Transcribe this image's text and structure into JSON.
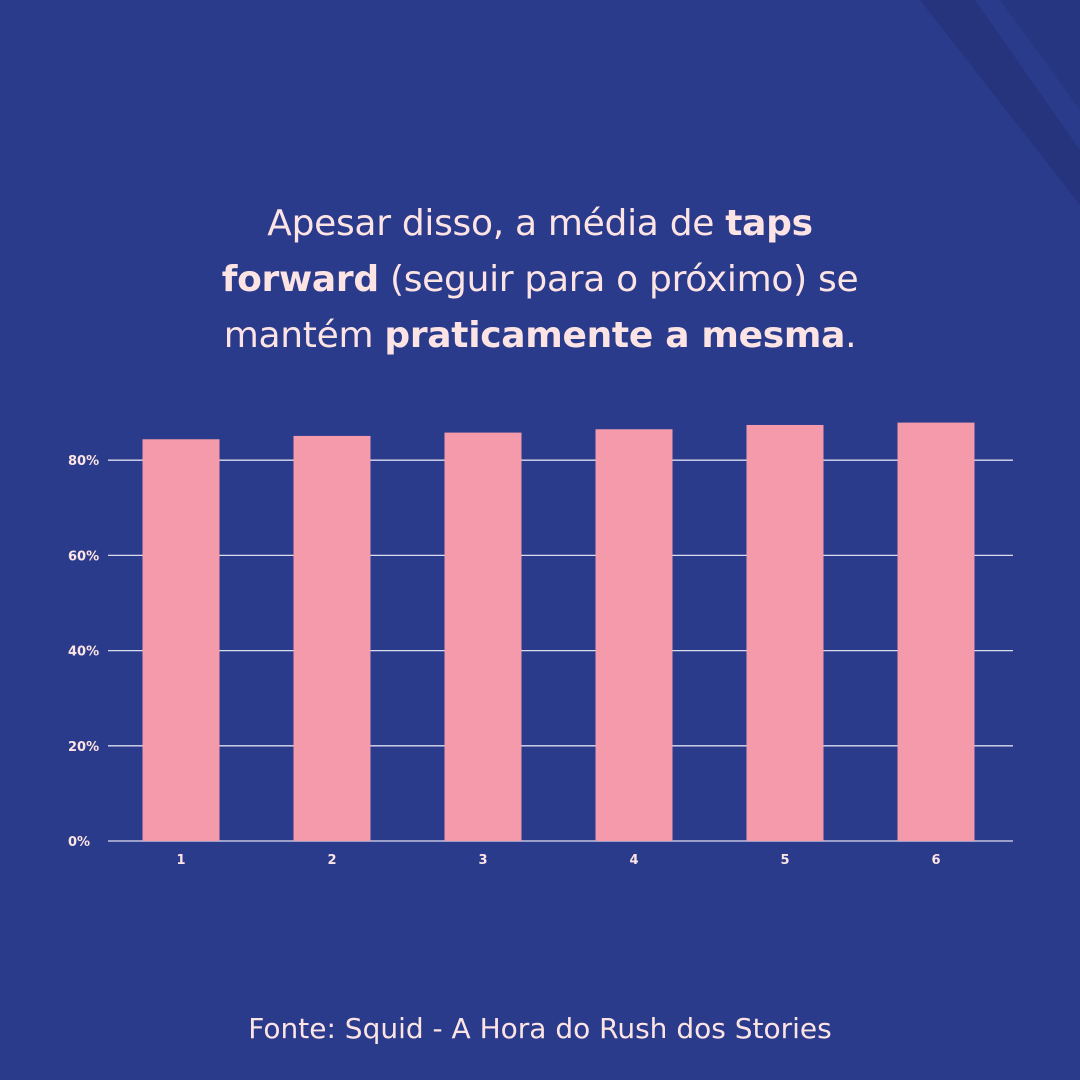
{
  "headline": {
    "line1_regular": "Apesar disso, a média de ",
    "line1_bold": "taps",
    "line2_bold": "forward",
    "line2_regular": " (seguir para o próximo) se",
    "line3_regular": "mantém ",
    "line3_bold": "praticamente a mesma",
    "line3_end": "."
  },
  "source": "Fonte: Squid - A Hora do Rush dos Stories",
  "colors": {
    "background": "#2b3b8c",
    "bar": "#f49aaa",
    "text": "#fde4e4",
    "gridline": "#dcdcef"
  },
  "chart_data": {
    "type": "bar",
    "categories": [
      "1",
      "2",
      "3",
      "4",
      "5",
      "6"
    ],
    "values": [
      84.4,
      85.1,
      85.8,
      86.5,
      87.4,
      87.9
    ],
    "ylim": [
      0,
      100
    ],
    "yticks": [
      0,
      20,
      40,
      60,
      80
    ],
    "ytick_labels": [
      "0%",
      "20%",
      "40%",
      "60%",
      "80%"
    ],
    "grid": true,
    "legend": "none"
  }
}
